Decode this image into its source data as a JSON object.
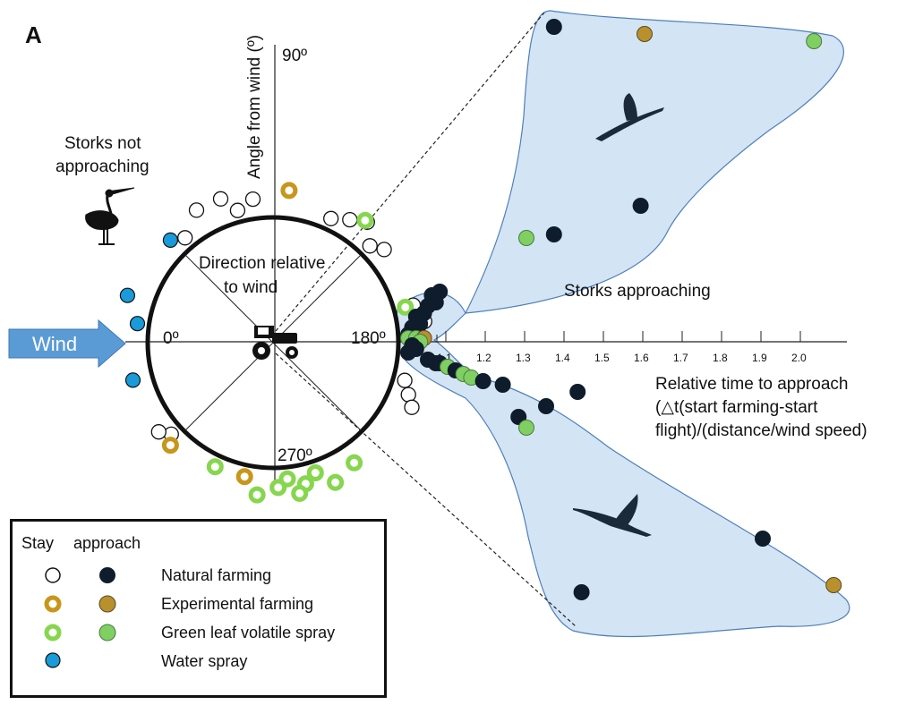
{
  "panel_label": "A",
  "chart_data": {
    "type": "scatter",
    "wind_label": "Wind",
    "circle_label": "Direction relative to wind",
    "circle_label_lines": [
      "Direction relative",
      "to wind"
    ],
    "angle_labels": {
      "deg0": "0º",
      "deg90": "90º",
      "deg180": "180º",
      "deg270": "270º"
    },
    "y_axis_label": "Angle from wind (º)",
    "x_axis_label_lines": [
      "Relative time to approach",
      "(△t(start farming-start",
      "flight)/(distance/wind speed)"
    ],
    "x_ticks": [
      "1.1",
      "1.2",
      "1.3",
      "1.4",
      "1.5",
      "1.6",
      "1.7",
      "1.8",
      "1.9",
      "2.0"
    ],
    "not_approaching_label_lines": [
      "Storks not",
      "approaching"
    ],
    "approaching_label": "Storks approaching",
    "legend": {
      "header_stay": "Stay",
      "header_approach": "approach",
      "entries": [
        {
          "label": "Natural farming",
          "stay_style": "hollow-thin",
          "approach_style": "filled",
          "color": "#ffffff",
          "approach_color": "#0f1c2b"
        },
        {
          "label": "Experimental farming",
          "stay_style": "ring",
          "approach_style": "filled",
          "color": "#c8961a",
          "approach_color": "#b8902e"
        },
        {
          "label": "Green leaf volatile spray",
          "stay_style": "ring",
          "approach_style": "filled",
          "color": "#86d64e",
          "approach_color": "#7fcf62"
        },
        {
          "label": "Water spray",
          "stay_style": "filled",
          "approach_style": null,
          "color": "#1a9ad8"
        }
      ]
    },
    "stay_points_deg": [
      {
        "deg": 75,
        "group": "natural"
      },
      {
        "deg": 82,
        "group": "natural"
      },
      {
        "deg": 70,
        "group": "natural"
      },
      {
        "deg": 115,
        "group": "natural"
      },
      {
        "deg": 122,
        "group": "natural"
      },
      {
        "deg": 128,
        "group": "natural"
      },
      {
        "deg": 135,
        "group": "natural"
      },
      {
        "deg": 140,
        "group": "natural"
      },
      {
        "deg": 60,
        "group": "natural"
      },
      {
        "deg": 50,
        "group": "natural"
      },
      {
        "deg": 165,
        "group": "natural"
      },
      {
        "deg": 172,
        "group": "natural"
      },
      {
        "deg": 196,
        "group": "natural"
      },
      {
        "deg": 201,
        "group": "natural"
      },
      {
        "deg": 205,
        "group": "natural"
      },
      {
        "deg": 318,
        "group": "natural"
      },
      {
        "deg": 322,
        "group": "natural"
      },
      {
        "deg": 96,
        "group": "experimental"
      },
      {
        "deg": 282,
        "group": "experimental"
      },
      {
        "deg": 315,
        "group": "experimental"
      },
      {
        "deg": 127,
        "group": "glv"
      },
      {
        "deg": 165,
        "group": "glv"
      },
      {
        "deg": 236,
        "group": "glv"
      },
      {
        "deg": 246,
        "group": "glv"
      },
      {
        "deg": 252,
        "group": "glv"
      },
      {
        "deg": 257,
        "group": "glv"
      },
      {
        "deg": 260,
        "group": "glv"
      },
      {
        "deg": 264,
        "group": "glv"
      },
      {
        "deg": 268,
        "group": "glv"
      },
      {
        "deg": 276,
        "group": "glv"
      },
      {
        "deg": 295,
        "group": "glv"
      },
      {
        "deg": 45,
        "group": "water"
      },
      {
        "deg": 18,
        "group": "water"
      },
      {
        "deg": 8,
        "group": "water"
      },
      {
        "deg": 345,
        "group": "water"
      }
    ],
    "approach_points": [
      {
        "x": 1.37,
        "y": 88,
        "group": "natural"
      },
      {
        "x": 1.6,
        "y": 86,
        "group": "experimental"
      },
      {
        "x": 2.03,
        "y": 84,
        "group": "glv"
      },
      {
        "x": 1.59,
        "y": 38,
        "group": "natural"
      },
      {
        "x": 1.37,
        "y": 30,
        "group": "natural"
      },
      {
        "x": 1.3,
        "y": 29,
        "group": "glv"
      },
      {
        "x": 1.08,
        "y": 14,
        "group": "natural"
      },
      {
        "x": 1.06,
        "y": 13,
        "group": "natural"
      },
      {
        "x": 1.07,
        "y": 11,
        "group": "natural"
      },
      {
        "x": 1.05,
        "y": 10,
        "group": "natural"
      },
      {
        "x": 1.04,
        "y": 8,
        "group": "natural"
      },
      {
        "x": 1.02,
        "y": 7,
        "group": "natural"
      },
      {
        "x": 1.03,
        "y": 5,
        "group": "natural"
      },
      {
        "x": 1.01,
        "y": 4,
        "group": "natural"
      },
      {
        "x": 1.0,
        "y": 2,
        "group": "natural"
      },
      {
        "x": 1.0,
        "y": 1,
        "group": "glv"
      },
      {
        "x": 1.02,
        "y": 1,
        "group": "glv"
      },
      {
        "x": 1.04,
        "y": 1,
        "group": "experimental"
      },
      {
        "x": 1.03,
        "y": 0,
        "group": "glv"
      },
      {
        "x": 1.01,
        "y": -1,
        "group": "natural"
      },
      {
        "x": 1.02,
        "y": -2,
        "group": "natural"
      },
      {
        "x": 1.0,
        "y": -3,
        "group": "natural"
      },
      {
        "x": 1.05,
        "y": -5,
        "group": "natural"
      },
      {
        "x": 1.07,
        "y": -6,
        "group": "natural"
      },
      {
        "x": 1.08,
        "y": -6,
        "group": "natural"
      },
      {
        "x": 1.1,
        "y": -7,
        "group": "glv"
      },
      {
        "x": 1.12,
        "y": -8,
        "group": "natural"
      },
      {
        "x": 1.14,
        "y": -9,
        "group": "glv"
      },
      {
        "x": 1.16,
        "y": -10,
        "group": "glv"
      },
      {
        "x": 1.19,
        "y": -11,
        "group": "natural"
      },
      {
        "x": 1.24,
        "y": -12,
        "group": "natural"
      },
      {
        "x": 1.43,
        "y": -14,
        "group": "natural"
      },
      {
        "x": 1.35,
        "y": -18,
        "group": "natural"
      },
      {
        "x": 1.28,
        "y": -21,
        "group": "natural"
      },
      {
        "x": 1.3,
        "y": -24,
        "group": "glv"
      },
      {
        "x": 1.9,
        "y": -55,
        "group": "natural"
      },
      {
        "x": 1.44,
        "y": -70,
        "group": "natural"
      },
      {
        "x": 2.08,
        "y": -68,
        "group": "experimental"
      }
    ]
  }
}
